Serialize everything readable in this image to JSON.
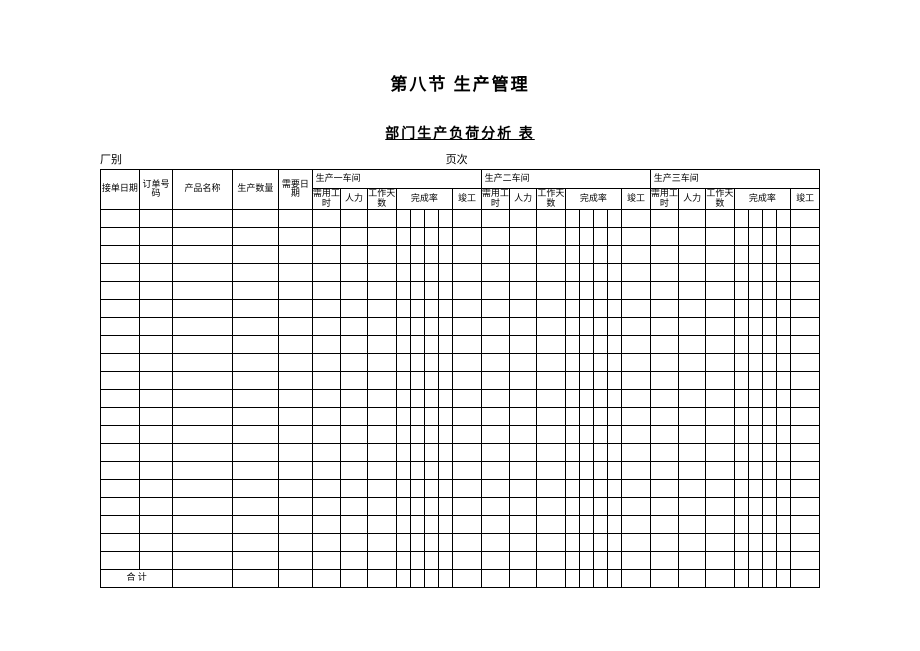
{
  "title": "第八节 生产管理",
  "subtitle": "部门生产负荷分析 表",
  "meta": {
    "factory_label": "厂别",
    "page_label": "页次"
  },
  "headers": {
    "recv_date": "接单日期",
    "order_no": "订单号码",
    "product": "产品名称",
    "qty": "生产数量",
    "need_date": "需要日期",
    "workshop1": "生产一车间",
    "workshop2": "生产二车间",
    "workshop3": "生产三车间",
    "hours": "需用工时",
    "manpower": "人力",
    "workdays": "工作天数",
    "rate": "完成率",
    "done": "竣工"
  },
  "footer": {
    "total": "合 计"
  },
  "body_rows": 20,
  "rate_subcols": 4,
  "workshops": 3
}
